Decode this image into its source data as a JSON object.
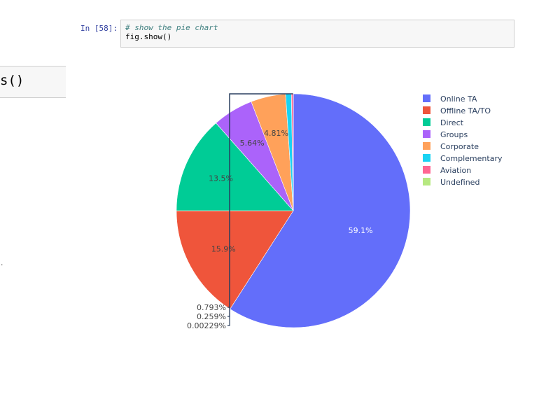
{
  "left_cell": {
    "text": "s()"
  },
  "left_fragment": ".",
  "code_cell": {
    "prompt": "In [58]:",
    "comment": "# show the pie chart",
    "code": "fig.show()"
  },
  "chart_data": {
    "type": "pie",
    "slices": [
      {
        "name": "Online TA",
        "value": 59.1,
        "label": "59.1%",
        "color": "#636efa",
        "label_color": "#ffffff"
      },
      {
        "name": "Offline TA/TO",
        "value": 15.9,
        "label": "15.9%",
        "color": "#ef553b",
        "label_color": "#444444"
      },
      {
        "name": "Direct",
        "value": 13.5,
        "label": "13.5%",
        "color": "#00cc96",
        "label_color": "#444444"
      },
      {
        "name": "Groups",
        "value": 5.64,
        "label": "5.64%",
        "color": "#ab63fa",
        "label_color": "#444444"
      },
      {
        "name": "Corporate",
        "value": 4.81,
        "label": "4.81%",
        "color": "#ffa15a",
        "label_color": "#444444"
      },
      {
        "name": "Complementary",
        "value": 0.793,
        "label": "0.793%",
        "color": "#19d3f3",
        "label_color": "#444444"
      },
      {
        "name": "Aviation",
        "value": 0.259,
        "label": "0.259%",
        "color": "#ff6692",
        "label_color": "#444444"
      },
      {
        "name": "Undefined",
        "value": 0.00229,
        "label": "0.00229%",
        "color": "#b6e880",
        "label_color": "#444444"
      }
    ],
    "legend_position": "right",
    "direction": "clockwise",
    "start": "top"
  }
}
